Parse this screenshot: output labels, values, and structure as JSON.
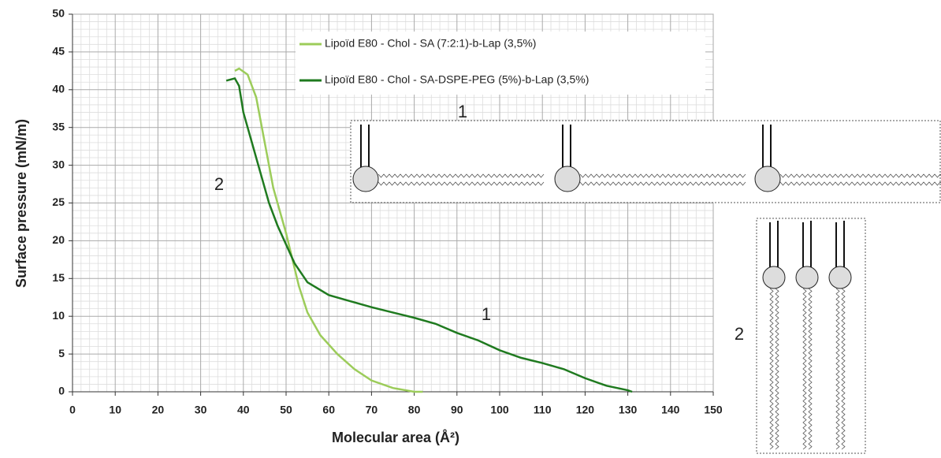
{
  "chart_data": {
    "type": "line",
    "x_label": "Molecular area (Å²)",
    "y_label": "Surface  pressure (mN/m)",
    "xlim": [
      0,
      150
    ],
    "ylim": [
      0,
      50
    ],
    "xticks": [
      0,
      10,
      20,
      30,
      40,
      50,
      60,
      70,
      80,
      90,
      100,
      110,
      120,
      130,
      140,
      150
    ],
    "yticks": [
      0,
      5,
      10,
      15,
      20,
      25,
      30,
      35,
      40,
      45,
      50
    ],
    "grid": true,
    "minor_grid": true,
    "legend": "upper right",
    "series": [
      {
        "name": "Lipoïd E80 - Chol - SA (7:2:1)-b-Lap (3,5%)",
        "color": "#9ccc5a",
        "x": [
          38,
          39,
          41,
          43,
          45,
          47,
          50,
          53,
          55,
          58,
          62,
          66,
          70,
          75,
          80,
          82
        ],
        "values": [
          42.5,
          42.8,
          42,
          39,
          33,
          27,
          21,
          14,
          10.5,
          7.5,
          5,
          3,
          1.5,
          0.5,
          0,
          0
        ]
      },
      {
        "name": "Lipoïd E80 - Chol - SA-DSPE-PEG (5%)-b-Lap (3,5%)",
        "color": "#1f7a1f",
        "x": [
          36,
          38,
          39,
          40,
          42,
          44,
          46,
          48,
          50,
          52,
          55,
          60,
          65,
          70,
          75,
          80,
          85,
          90,
          95,
          100,
          105,
          110,
          115,
          120,
          125,
          130,
          131
        ],
        "values": [
          41.2,
          41.5,
          40.5,
          37,
          33,
          29,
          25,
          22,
          19.5,
          17,
          14.5,
          12.8,
          12,
          11.2,
          10.5,
          9.8,
          9,
          7.8,
          6.8,
          5.5,
          4.5,
          3.8,
          3,
          1.8,
          0.8,
          0.2,
          0
        ]
      }
    ],
    "annotations": [
      "1",
      "2",
      "1",
      "2"
    ]
  }
}
